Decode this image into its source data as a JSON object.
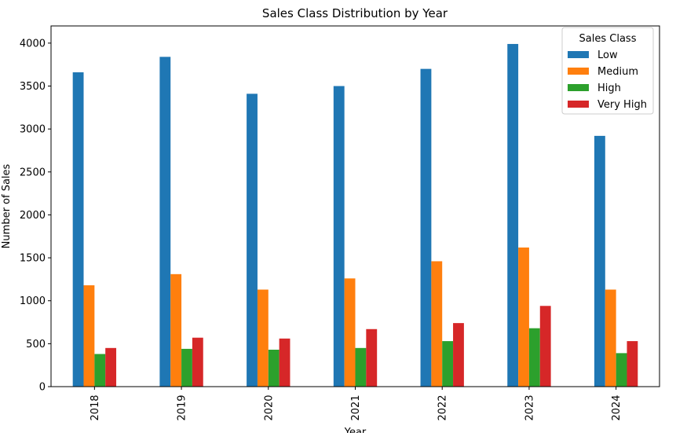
{
  "chart_data": {
    "type": "bar",
    "title": "Sales Class Distribution by Year",
    "xlabel": "Year",
    "ylabel": "Number of Sales",
    "categories": [
      "2018",
      "2019",
      "2020",
      "2021",
      "2022",
      "2023",
      "2024"
    ],
    "ylim": [
      0,
      4200
    ],
    "yticks": [
      0,
      500,
      1000,
      1500,
      2000,
      2500,
      3000,
      3500,
      4000
    ],
    "grid": false,
    "legend": {
      "title": "Sales Class",
      "position": "top-right"
    },
    "series": [
      {
        "name": "Low",
        "color": "#1f77b4",
        "values": [
          3660,
          3840,
          3410,
          3500,
          3700,
          3990,
          2920
        ]
      },
      {
        "name": "Medium",
        "color": "#ff7f0e",
        "values": [
          1180,
          1310,
          1130,
          1260,
          1460,
          1620,
          1130
        ]
      },
      {
        "name": "High",
        "color": "#2ca02c",
        "values": [
          380,
          440,
          430,
          450,
          530,
          680,
          390
        ]
      },
      {
        "name": "Very High",
        "color": "#d62728",
        "values": [
          450,
          570,
          560,
          670,
          740,
          940,
          530
        ]
      }
    ]
  }
}
